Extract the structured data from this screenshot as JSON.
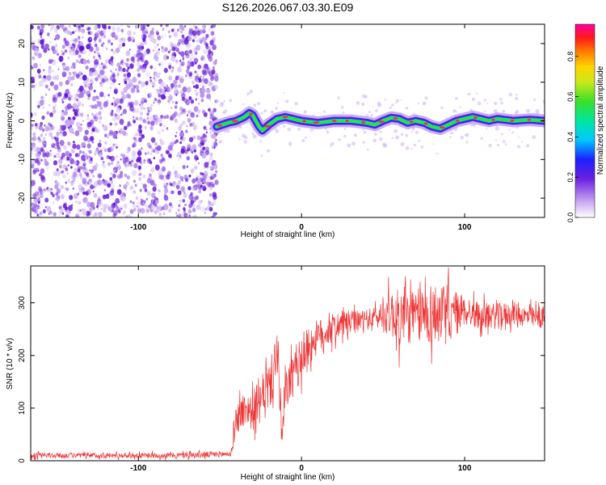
{
  "title": "S126.2026.067.03.30.E09",
  "colors": {
    "dot_color": "#6a1ad8",
    "trace_green": "#39e02a",
    "trace_red": "#e83c2c",
    "snr_line": "#ee3333"
  },
  "chart_data": [
    {
      "type": "heatmap",
      "xlabel": "Height of straight line (km)",
      "ylabel": "Frequency (Hz)",
      "xlim": [
        -166,
        149
      ],
      "ylim": [
        -25,
        25
      ],
      "x_ticks": [
        -100,
        0,
        100
      ],
      "y_ticks": [
        -20,
        -10,
        0,
        10,
        20
      ],
      "colorbar": {
        "label": "Normalized spectral amplitude",
        "range": [
          0,
          0.96
        ],
        "ticks": [
          0.0,
          0.2,
          0.4,
          0.6,
          0.8
        ]
      },
      "noise_region_x": [
        -166,
        -52
      ],
      "ridge": {
        "x": [
          -52,
          -45,
          -40,
          -35,
          -32,
          -30,
          -28,
          -26,
          -24,
          -20,
          -15,
          -10,
          0,
          10,
          20,
          30,
          40,
          45,
          50,
          55,
          60,
          65,
          70,
          75,
          80,
          85,
          90,
          95,
          100,
          105,
          110,
          115,
          120,
          130,
          140,
          149
        ],
        "y": [
          -1.5,
          -0.5,
          0,
          1,
          2,
          1.5,
          0,
          -1.5,
          -2.5,
          -1,
          0.5,
          1,
          0,
          -0.5,
          0,
          0,
          -0.5,
          -1,
          0,
          0.8,
          0.5,
          -0.5,
          0,
          -0.5,
          -1.5,
          -2,
          -1,
          0,
          0.5,
          1,
          0.5,
          0,
          0.5,
          0,
          0.3,
          0
        ]
      }
    },
    {
      "type": "line",
      "xlabel": "Height of straight line (km)",
      "ylabel": "SNR (10 * v/v)",
      "xlim": [
        -166,
        149
      ],
      "ylim": [
        0,
        370
      ],
      "x_ticks": [
        -100,
        0,
        100
      ],
      "y_ticks": [
        0,
        100,
        200,
        300
      ],
      "series": [
        {
          "x": [
            -166,
            -140,
            -110,
            -80,
            -60,
            -43,
            -40,
            -36,
            -33,
            -30,
            -28,
            -26,
            -24,
            -22,
            -20,
            -18,
            -16,
            -15,
            -14,
            -13,
            -12,
            -10,
            -8,
            -5,
            -2,
            0,
            3,
            8,
            15,
            25,
            35,
            45,
            55,
            60,
            70,
            80,
            90,
            100,
            110,
            120,
            130,
            140,
            149
          ],
          "mean": [
            10,
            10,
            10,
            10,
            11,
            13,
            80,
            95,
            100,
            90,
            110,
            100,
            120,
            150,
            135,
            160,
            180,
            220,
            170,
            100,
            40,
            120,
            150,
            160,
            180,
            200,
            210,
            230,
            245,
            260,
            265,
            272,
            280,
            270,
            275,
            280,
            275,
            285,
            275,
            275,
            280,
            272,
            270
          ],
          "noise_amp": [
            5,
            5,
            5,
            5,
            6,
            6,
            30,
            35,
            30,
            35,
            40,
            35,
            40,
            50,
            45,
            45,
            55,
            50,
            45,
            50,
            30,
            40,
            40,
            40,
            40,
            45,
            40,
            35,
            30,
            25,
            20,
            20,
            45,
            55,
            50,
            60,
            55,
            30,
            25,
            25,
            22,
            20,
            20
          ]
        }
      ]
    }
  ]
}
